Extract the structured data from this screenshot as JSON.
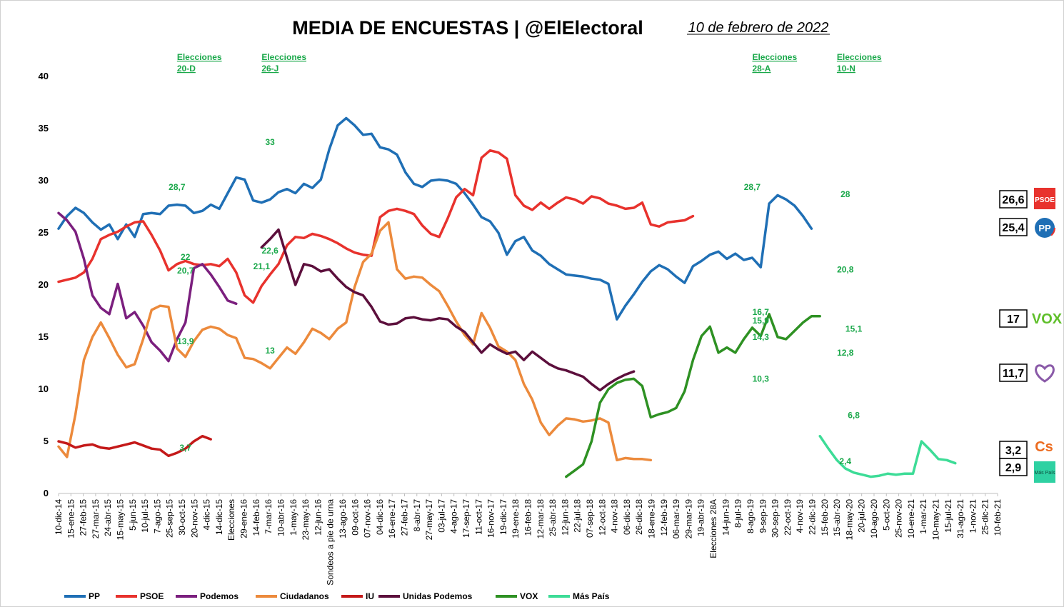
{
  "chart_data": {
    "type": "line",
    "title": "MEDIA DE ENCUESTAS | @ElElectoral",
    "date": "10 de febrero de 2022",
    "ylim": [
      0,
      40
    ],
    "yticks": [
      0,
      5,
      10,
      15,
      20,
      25,
      30,
      35,
      40
    ],
    "n_points": 112,
    "xtick_labels": [
      "10-dic-14",
      "15-ene-15",
      "27-feb-15",
      "27-mar-15",
      "24-abr-15",
      "15-may-15",
      "5-jun-15",
      "10-jul-15",
      "7-ago-15",
      "25-sep-15",
      "30-oct-15",
      "20-nov-15",
      "4-dic-15",
      "14-dic-15",
      "Elecciones",
      "29-ene-16",
      "14-feb-16",
      "7-mar-16",
      "10-abr-16",
      "1-may-16",
      "23-may-16",
      "12-jun-16",
      "Sondeos a pie de urna",
      "13-ago-16",
      "09-oct-16",
      "07-nov-16",
      "04-dic-16",
      "16-ene-17",
      "27-feb-17",
      "8-abr-17",
      "27-may-17",
      "03-jul-17",
      "4-ago-17",
      "17-sep-17",
      "11-oct-17",
      "16-nov-17",
      "19-dic-17",
      "19-ene-18",
      "16-feb-18",
      "12-mar-18",
      "25-abr-18",
      "12-jun-18",
      "22-jul-18",
      "07-sep-18",
      "12-oct-18",
      "4-nov-18",
      "06-dic-18",
      "26-dic-18",
      "18-ene-19",
      "12-feb-19",
      "06-mar-19",
      "29-mar-19",
      "19-abr-19",
      "Elecciones 28A",
      "14-jun-19",
      "8-jul-19",
      "8-ago-19",
      "9-sep-19",
      "30-sep-19",
      "22-oct-19",
      "4-nov-19",
      "22-dic-19",
      "15-feb-20",
      "15-abr-20",
      "18-may-20",
      "20-jul-20",
      "10-ago-20",
      "5-oct-20",
      "25-nov-20",
      "10-ene-21",
      "1-mar-21",
      "10-may-21",
      "15-jul-21",
      "31-ago-21",
      "1-nov-21",
      "25-dic-21",
      "10-feb-21"
    ],
    "elections": [
      {
        "label": [
          "Elecciones",
          "20-D"
        ],
        "x": 14
      },
      {
        "label": [
          "Elecciones",
          "26-J"
        ],
        "x": 24
      },
      {
        "label": [
          "Elecciones",
          "28-A"
        ],
        "x": 82
      },
      {
        "label": [
          "Elecciones",
          "10-N"
        ],
        "x": 92
      }
    ],
    "series": [
      {
        "name": "PP",
        "color": "#1f6fb5",
        "start": 0,
        "values": [
          25.4,
          26.6,
          27.4,
          26.9,
          26.0,
          25.3,
          25.8,
          24.4,
          25.8,
          24.6,
          26.8,
          26.9,
          26.8,
          27.6,
          27.7,
          27.6,
          26.9,
          27.1,
          27.7,
          27.3,
          28.8,
          30.3,
          30.1,
          28.1,
          27.9,
          28.2,
          28.9,
          29.2,
          28.8,
          29.7,
          29.3,
          30.1,
          33.0,
          35.3,
          36.0,
          35.3,
          34.4,
          34.5,
          33.2,
          33.0,
          32.5,
          30.8,
          29.7,
          29.4,
          30.0,
          30.1,
          30.0,
          29.7,
          28.8,
          27.7,
          26.5,
          26.1,
          25.0,
          22.9,
          24.2,
          24.6,
          23.3,
          22.8,
          22.0,
          21.5,
          21.0,
          20.9,
          20.8,
          20.6,
          20.5,
          20.1,
          16.7,
          18.0,
          19.1,
          20.3,
          21.3,
          21.9,
          21.5,
          20.8,
          20.2,
          21.8,
          22.3,
          22.9,
          23.2,
          22.5,
          23.0,
          22.4,
          22.6,
          21.7,
          27.8,
          28.6,
          28.2,
          27.6,
          26.6,
          25.4
        ]
      },
      {
        "name": "PSOE",
        "color": "#e8322d",
        "start": 0,
        "values": [
          20.3,
          20.5,
          20.7,
          21.2,
          22.5,
          24.4,
          24.8,
          25.1,
          25.6,
          26.0,
          26.1,
          24.8,
          23.3,
          21.4,
          22.0,
          22.3,
          22.0,
          21.9,
          22.0,
          21.8,
          22.5,
          21.2,
          19.0,
          18.3,
          19.9,
          21.0,
          22.0,
          23.8,
          24.6,
          24.5,
          24.9,
          24.7,
          24.4,
          24.0,
          23.5,
          23.1,
          22.9,
          22.8,
          26.5,
          27.1,
          27.3,
          27.1,
          26.8,
          25.7,
          24.9,
          24.6,
          26.4,
          28.4,
          29.2,
          28.6,
          32.2,
          32.9,
          32.7,
          32.1,
          28.6,
          27.6,
          27.2,
          27.9,
          27.3,
          27.9,
          28.4,
          28.2,
          27.8,
          28.5,
          28.3,
          27.8,
          27.6,
          27.3,
          27.4,
          27.9,
          25.8,
          25.6,
          26.0,
          26.1,
          26.2,
          26.6
        ]
      },
      {
        "name": "Podemos",
        "color": "#7b1f7e",
        "start": 0,
        "values": [
          26.9,
          26.2,
          25.1,
          22.5,
          19.0,
          17.8,
          17.2,
          20.1,
          16.8,
          17.4,
          16.1,
          14.5,
          13.7,
          12.7,
          14.8,
          16.4,
          21.6,
          22.0,
          21.0,
          19.8,
          18.5,
          18.2
        ]
      },
      {
        "name": "Ciudadanos",
        "color": "#ec8a3c",
        "start": 0,
        "values": [
          4.5,
          3.5,
          7.6,
          12.8,
          15.0,
          16.4,
          14.9,
          13.3,
          12.1,
          12.4,
          14.8,
          17.6,
          18.0,
          17.9,
          13.9,
          13.1,
          14.6,
          15.7,
          16.0,
          15.8,
          15.2,
          14.9,
          13.0,
          12.9,
          12.5,
          12.0,
          13.0,
          14.0,
          13.4,
          14.5,
          15.8,
          15.4,
          14.8,
          15.8,
          16.4,
          19.8,
          22.2,
          23.0,
          25.2,
          26.0,
          21.5,
          20.6,
          20.8,
          20.7,
          20.0,
          19.4,
          18.0,
          16.5,
          15.2,
          14.3,
          17.3,
          15.9,
          14.1,
          13.6,
          12.8,
          10.5,
          9.0,
          6.8,
          5.6,
          6.5,
          7.2,
          7.1,
          6.9,
          7.0,
          7.2,
          6.8,
          3.2,
          3.4,
          3.3,
          3.3,
          3.2
        ]
      },
      {
        "name": "IU",
        "color": "#c41919",
        "start": 0,
        "values": [
          5.0,
          4.8,
          4.4,
          4.6,
          4.7,
          4.4,
          4.3,
          4.5,
          4.7,
          4.9,
          4.6,
          4.3,
          4.2,
          3.6,
          3.9,
          4.3,
          5.0,
          5.5,
          5.2
        ]
      },
      {
        "name": "Unidas Podemos",
        "color": "#5c0f3c",
        "start": 24,
        "values": [
          23.6,
          24.4,
          25.3,
          22.6,
          20.0,
          22.0,
          21.8,
          21.3,
          21.5,
          20.6,
          19.8,
          19.3,
          19.0,
          17.9,
          16.5,
          16.2,
          16.3,
          16.8,
          16.9,
          16.7,
          16.6,
          16.8,
          16.7,
          16.0,
          15.5,
          14.5,
          13.5,
          14.3,
          13.8,
          13.4,
          13.6,
          12.8,
          13.6,
          13.0,
          12.4,
          12.0,
          11.8,
          11.5,
          11.2,
          10.5,
          9.9,
          10.5,
          11.0,
          11.4,
          11.7
        ]
      },
      {
        "name": "VOX",
        "color": "#2e9123",
        "start": 60,
        "values": [
          1.6,
          2.2,
          2.8,
          5.0,
          8.7,
          10.0,
          10.6,
          10.9,
          11.0,
          10.3,
          7.3,
          7.6,
          7.8,
          8.2,
          9.8,
          12.8,
          15.1,
          16.0,
          13.5,
          14.0,
          13.5,
          14.8,
          15.9,
          15.1,
          17.2,
          15.0,
          14.8,
          15.6,
          16.4,
          17.0,
          17.0
        ]
      },
      {
        "name": "Más País",
        "color": "#3ddc97",
        "start": 90,
        "values": [
          5.5,
          4.3,
          3.2,
          2.4,
          2.0,
          1.8,
          1.6,
          1.7,
          1.9,
          1.8,
          1.9,
          1.9,
          5.0,
          4.2,
          3.3,
          3.2,
          2.9
        ]
      }
    ],
    "annotations": [
      {
        "text": "28,7",
        "x": 14,
        "y": 28.7
      },
      {
        "text": "22",
        "x": 15,
        "y": 22.0
      },
      {
        "text": "20,7",
        "x": 15,
        "y": 20.7
      },
      {
        "text": "13,9",
        "x": 15,
        "y": 13.9
      },
      {
        "text": "3,7",
        "x": 15,
        "y": 3.7
      },
      {
        "text": "33",
        "x": 25,
        "y": 33.0
      },
      {
        "text": "22,6",
        "x": 25,
        "y": 22.6
      },
      {
        "text": "21,1",
        "x": 24,
        "y": 21.1
      },
      {
        "text": "13",
        "x": 25,
        "y": 13.0
      },
      {
        "text": "28,7",
        "x": 82,
        "y": 28.7
      },
      {
        "text": "16,7",
        "x": 83,
        "y": 16.7
      },
      {
        "text": "15,9",
        "x": 83,
        "y": 15.9
      },
      {
        "text": "14,3",
        "x": 83,
        "y": 14.3
      },
      {
        "text": "10,3",
        "x": 83,
        "y": 10.3
      },
      {
        "text": "28",
        "x": 93,
        "y": 28.0
      },
      {
        "text": "20,8",
        "x": 93,
        "y": 20.8
      },
      {
        "text": "15,1",
        "x": 94,
        "y": 15.1
      },
      {
        "text": "12,8",
        "x": 93,
        "y": 12.8
      },
      {
        "text": "6,8",
        "x": 94,
        "y": 6.8
      },
      {
        "text": "2,4",
        "x": 93,
        "y": 2.4
      }
    ],
    "end_labels": [
      {
        "text": "26,6",
        "y": 26.6,
        "logo": "PSOE",
        "logo_color": "#e8322d"
      },
      {
        "text": "25,4",
        "y": 25.4,
        "logo": "PP",
        "logo_color": "#1f6fb5"
      },
      {
        "text": "17",
        "y": 17.0,
        "logo": "VOX",
        "logo_color": "#5fbf2a"
      },
      {
        "text": "11,7",
        "y": 11.7,
        "logo": "heart-icon",
        "logo_color": "#8a5aa8"
      },
      {
        "text": "3,2",
        "y": 3.2,
        "logo": "Cs",
        "logo_color": "#ec6b1f"
      },
      {
        "text": "2,9",
        "y": 2.9,
        "logo": "Más País",
        "logo_color": "#2ed1a2"
      }
    ],
    "legend": {
      "placement": "bottom-left"
    }
  }
}
